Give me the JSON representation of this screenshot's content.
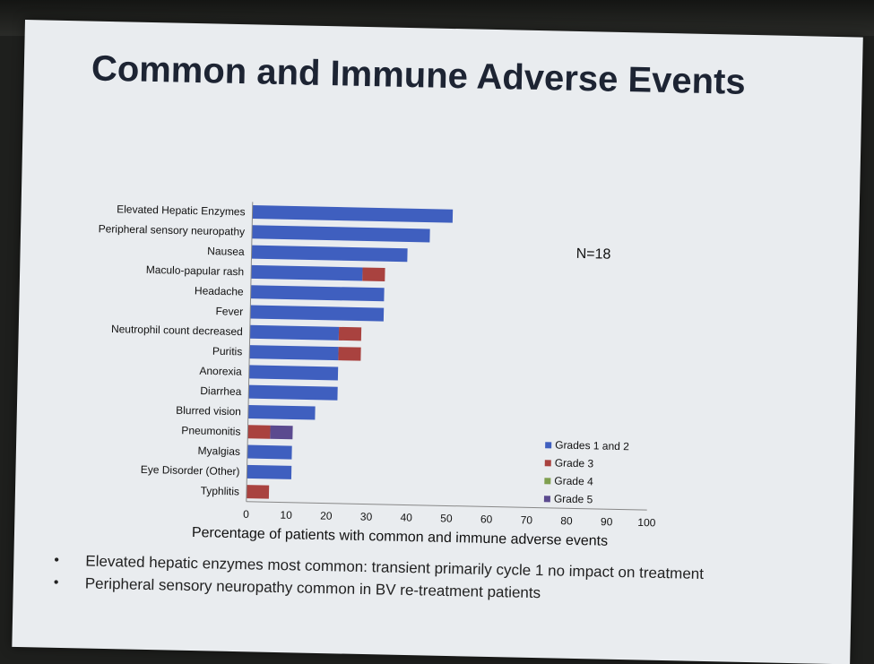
{
  "slide": {
    "title": "Common and Immune Adverse Events",
    "n_label": "N=18",
    "bullets": [
      "Elevated hepatic enzymes most common: transient primarily cycle 1 no impact on treatment",
      "Peripheral sensory neuropathy common in BV re-treatment patients"
    ]
  },
  "chart_data": {
    "type": "bar",
    "orientation": "horizontal",
    "stacked": true,
    "categories": [
      "Elevated Hepatic Enzymes",
      "Peripheral sensory neuropathy",
      "Nausea",
      "Maculo-papular rash",
      "Headache",
      "Fever",
      "Neutrophil count decreased",
      "Puritis",
      "Anorexia",
      "Diarrhea",
      "Blurred vision",
      "Pneumonitis",
      "Myalgias",
      "Eye Disorder (Other)",
      "Typhlitis"
    ],
    "series": [
      {
        "name": "Grades 1 and 2",
        "color": "#3f5fbf",
        "values": [
          50,
          44.4,
          38.9,
          27.8,
          33.3,
          33.3,
          22.2,
          22.2,
          22.2,
          22.2,
          16.7,
          0,
          11.1,
          11.1,
          0
        ]
      },
      {
        "name": "Grade 3",
        "color": "#a9423f",
        "values": [
          0,
          0,
          0,
          5.6,
          0,
          0,
          5.6,
          5.6,
          0,
          0,
          0,
          5.6,
          0,
          0,
          5.6
        ]
      },
      {
        "name": "Grade 4",
        "color": "#7f9f4f",
        "values": [
          0,
          0,
          0,
          0,
          0,
          0,
          0,
          0,
          0,
          0,
          0,
          0,
          0,
          0,
          0
        ]
      },
      {
        "name": "Grade 5",
        "color": "#5b4a8f",
        "values": [
          0,
          0,
          0,
          0,
          0,
          0,
          0,
          0,
          0,
          0,
          0,
          5.6,
          0,
          0,
          0
        ]
      }
    ],
    "xlabel": "Percentage of patients with common and immune adverse events",
    "xlim": [
      0,
      100
    ],
    "xticks": [
      0,
      10,
      20,
      30,
      40,
      50,
      60,
      70,
      80,
      90,
      100
    ],
    "legend_position": "bottom-right",
    "grid": false
  }
}
